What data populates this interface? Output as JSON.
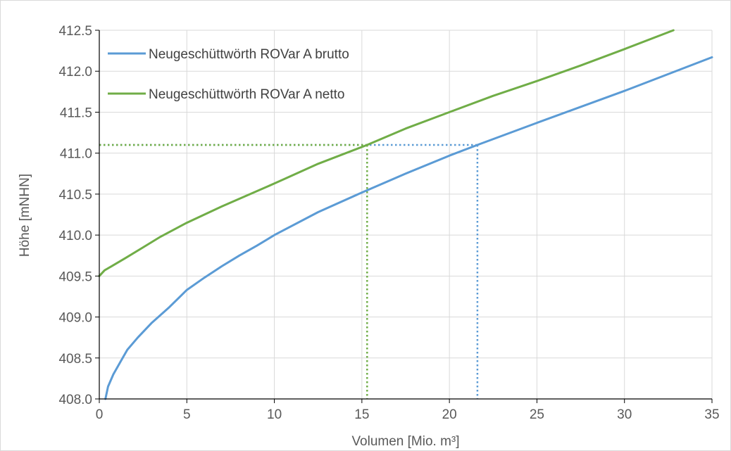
{
  "chart_data": {
    "type": "line",
    "title": "",
    "xlabel": "Volumen  [Mio. m³]",
    "ylabel": "Höhe [mNHN]",
    "xlim": [
      0,
      35
    ],
    "ylim": [
      408.0,
      412.5
    ],
    "xticks": [
      0,
      5,
      10,
      15,
      20,
      25,
      30,
      35
    ],
    "xtick_labels": [
      "0",
      "5",
      "10",
      "15",
      "20",
      "25",
      "30",
      "35"
    ],
    "yticks": [
      408.0,
      408.5,
      409.0,
      409.5,
      410.0,
      410.5,
      411.0,
      411.5,
      412.0,
      412.5
    ],
    "ytick_labels": [
      "408.0",
      "408.5",
      "409.0",
      "409.5",
      "410.0",
      "410.5",
      "411.0",
      "411.5",
      "412.0",
      "412.5"
    ],
    "grid": true,
    "legend_position": "top-left",
    "series": [
      {
        "name": "Neugeschüttwörth ROVar A brutto",
        "color": "#5b9bd5",
        "x": [
          0.35,
          0.5,
          0.8,
          1.2,
          1.6,
          2.2,
          3.0,
          4.0,
          5.0,
          6.0,
          7.0,
          8.0,
          9.0,
          10.0,
          12.5,
          15.0,
          17.5,
          20.0,
          21.6,
          25.0,
          30.0,
          35.0
        ],
        "y": [
          408.0,
          408.15,
          408.3,
          408.45,
          408.6,
          408.75,
          408.93,
          409.12,
          409.33,
          409.48,
          409.62,
          409.75,
          409.87,
          410.0,
          410.28,
          410.52,
          410.75,
          410.97,
          411.1,
          411.37,
          411.76,
          412.17
        ]
      },
      {
        "name": "Neugeschüttwörth ROVar A netto",
        "color": "#70ad47",
        "x": [
          0.0,
          0.3,
          0.7,
          1.5,
          2.5,
          3.5,
          5.0,
          7.0,
          10.0,
          12.5,
          15.3,
          17.5,
          20.0,
          22.5,
          25.0,
          27.5,
          30.0,
          32.8
        ],
        "y": [
          409.5,
          409.57,
          409.62,
          409.72,
          409.85,
          409.98,
          410.15,
          410.35,
          410.63,
          410.87,
          411.1,
          411.3,
          411.5,
          411.7,
          411.88,
          412.07,
          412.27,
          412.5
        ]
      }
    ],
    "reference_lines": [
      {
        "color": "#5b9bd5",
        "x": 21.6,
        "y": 411.1,
        "style": "dotted"
      },
      {
        "color": "#70ad47",
        "x": 15.3,
        "y": 411.1,
        "style": "dotted"
      }
    ]
  }
}
